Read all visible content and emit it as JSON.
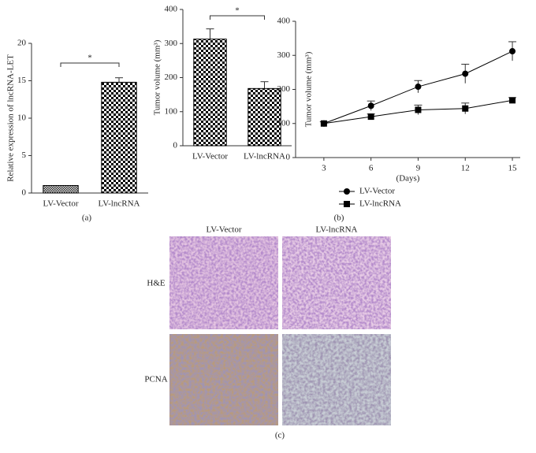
{
  "chart_data": [
    {
      "type": "bar",
      "ylabel": "Relative expression of lncRNA-LET",
      "categories": [
        "LV-Vector",
        "LV-lncRNA"
      ],
      "values": [
        1,
        14.8
      ],
      "errors": [
        0,
        0.6
      ],
      "color": "#000000",
      "ylim": [
        0,
        20
      ],
      "yticks": [
        0,
        5,
        10,
        15,
        20
      ],
      "annotation": "*",
      "caption": "(a)"
    },
    {
      "type": "bar",
      "ylabel": "Tumor volume (mm³)",
      "categories": [
        "LV-Vector",
        "LV-lncRNA"
      ],
      "values": [
        313,
        168
      ],
      "errors": [
        30,
        20
      ],
      "color": "#000000",
      "ylim": [
        0,
        400
      ],
      "yticks": [
        0,
        100,
        200,
        300,
        400
      ],
      "annotation": "*"
    },
    {
      "type": "line",
      "ylabel": "Tumor volume (mm³)",
      "xlabel": "(Days)",
      "x": [
        3,
        6,
        9,
        12,
        15
      ],
      "xlim": [
        1.2,
        15.5
      ],
      "xticks": [
        3,
        6,
        9,
        12,
        15
      ],
      "ylim": [
        0,
        400
      ],
      "yticks": [
        0,
        100,
        200,
        300,
        400
      ],
      "series": [
        {
          "name": "LV-Vector",
          "color": "#000000",
          "marker": "circle",
          "values": [
            100,
            152,
            208,
            246,
            312
          ],
          "errors": [
            5,
            14,
            18,
            28,
            28
          ]
        },
        {
          "name": "LV-lncRNA",
          "color": "#000000",
          "marker": "square",
          "values": [
            100,
            120,
            140,
            144,
            168
          ],
          "errors": [
            5,
            8,
            14,
            16,
            8
          ]
        }
      ],
      "legend": "bottom-left",
      "caption": "(b)"
    }
  ],
  "panel_c": {
    "columns": [
      "LV-Vector",
      "LV-lncRNA"
    ],
    "rows": [
      "H&E",
      "PCNA"
    ],
    "caption": "(c)"
  }
}
